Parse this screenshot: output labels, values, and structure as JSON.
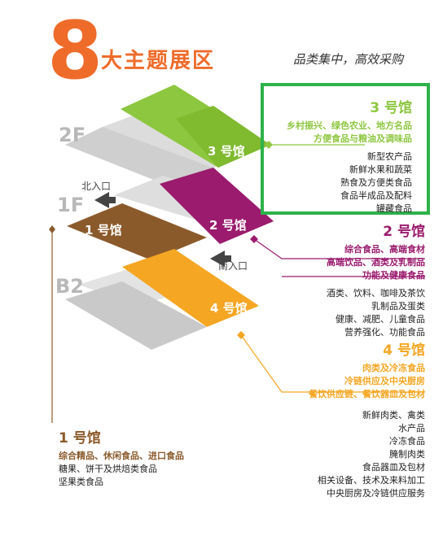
{
  "header": {
    "big_number": "8",
    "title": "大主题展区",
    "subtitle": "品类集中，高效采购"
  },
  "floors": {
    "f2": "2F",
    "f1": "1F",
    "b2": "B2"
  },
  "entrances": {
    "north": "北入口",
    "south": "南入口"
  },
  "halls": {
    "h3": {
      "map_label": "3 号馆",
      "title": "3 号馆",
      "color": "#8dc63f",
      "tags": [
        "乡村振兴、绿色农业、地方名品",
        "方便食品与粮油及调味品"
      ],
      "items": [
        "新型农产品",
        "新鲜水果和蔬菜",
        "熟食及方便类食品",
        "食品半成品及配料",
        "罐藏食品"
      ]
    },
    "h2": {
      "map_label": "2 号馆",
      "title": "2 号馆",
      "color": "#9b1b6e",
      "tags": [
        "综合食品、高端食材",
        "高端饮品、酒类及乳制品",
        "功能及健康食品"
      ],
      "items": [
        "酒类、饮料、咖啡及茶饮",
        "乳制品及蛋类",
        "健康、减肥、儿童食品",
        "营养强化、功能食品"
      ]
    },
    "h4": {
      "map_label": "4 号馆",
      "title": "4 号馆",
      "color": "#f5a623",
      "tags": [
        "肉类及冷冻食品",
        "冷链供应及中央厨房",
        "餐饮供应链、餐饮器皿及包材"
      ],
      "items": [
        "新鲜肉类、禽类",
        "水产品",
        "冷冻食品",
        "腌制肉类",
        "食品器皿及包材",
        "相关设备、技术及来料加工",
        "中央厨房及冷链供应服务"
      ]
    },
    "h1": {
      "map_label": "1 号馆",
      "title": "1 号馆",
      "color": "#8b5a2b",
      "tags": [
        "综合精品、休闲食品、进口食品"
      ],
      "items": [
        "糖果、饼干及烘焙类食品",
        "坚果类食品"
      ]
    }
  }
}
